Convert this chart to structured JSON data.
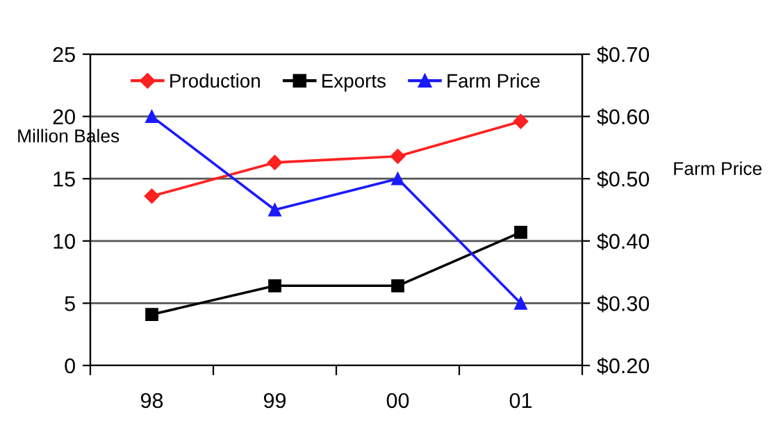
{
  "chart_data": {
    "type": "line",
    "categories": [
      "98",
      "99",
      "00",
      "01"
    ],
    "series": [
      {
        "name": "Production",
        "color": "#ff2020",
        "marker": "diamond",
        "values": [
          13.6,
          16.3,
          16.8,
          19.6
        ]
      },
      {
        "name": "Exports",
        "color": "#000000",
        "marker": "square",
        "values": [
          4.1,
          6.4,
          6.4,
          10.7
        ]
      },
      {
        "name": "Farm Price",
        "color": "#1a1aff",
        "marker": "triangle",
        "axis": "y2",
        "values": [
          0.6,
          0.45,
          0.5,
          0.3
        ]
      }
    ],
    "ylabel": "Million Bales",
    "y2label": "Farm Price",
    "ylim": [
      0,
      25
    ],
    "yticks": [
      0,
      5,
      10,
      15,
      20,
      25
    ],
    "y2lim": [
      0.2,
      0.7
    ],
    "y2ticks": [
      {
        "value": 0.2,
        "label": "$0.20"
      },
      {
        "value": 0.3,
        "label": "$0.30"
      },
      {
        "value": 0.4,
        "label": "$0.40"
      },
      {
        "value": 0.5,
        "label": "$0.50"
      },
      {
        "value": 0.6,
        "label": "$0.60"
      },
      {
        "value": 0.7,
        "label": "$0.70"
      }
    ],
    "grid": "y",
    "legend": "top"
  }
}
